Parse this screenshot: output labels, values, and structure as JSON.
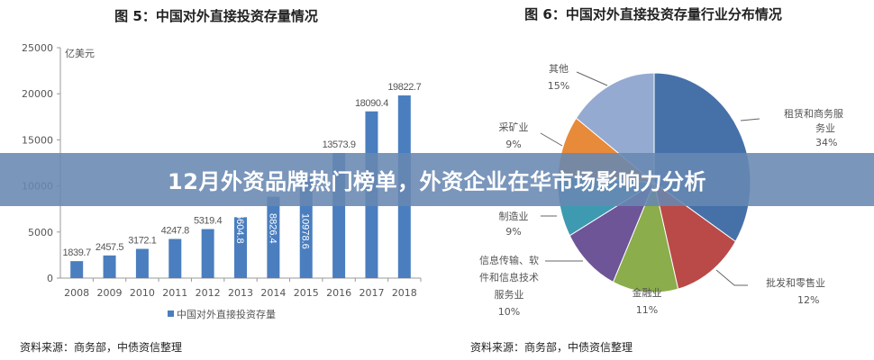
{
  "chart_data": [
    {
      "type": "bar",
      "title": "图 5：中国对外直接投资存量情况",
      "ylabel": "亿美元",
      "categories": [
        "2008",
        "2009",
        "2010",
        "2011",
        "2012",
        "2013",
        "2014",
        "2015",
        "2016",
        "2017",
        "2018"
      ],
      "series": [
        {
          "name": "中国对外直接投资存量",
          "values": [
            1839.7,
            2457.5,
            3172.1,
            4247.8,
            5319.4,
            6604.8,
            8826.4,
            10978.6,
            13573.9,
            18090.4,
            19822.7
          ]
        }
      ],
      "data_labels": [
        "1839.7",
        "2457.5",
        "3172.1",
        "4247.8",
        "5319.4",
        "6604.8",
        "8826.4",
        "10978.6",
        "13573.9",
        "18090.4",
        "19822.7"
      ],
      "yticks": [
        "0",
        "5000",
        "10000",
        "15000",
        "20000",
        "25000"
      ],
      "ylim": [
        0,
        25000
      ],
      "legend": "bottom",
      "color": "#4a7ebf",
      "source": "资料来源：商务部，中债资信整理"
    },
    {
      "type": "pie",
      "title": "图 6：中国对外直接投资存量行业分布情况",
      "slices": [
        {
          "label": "租赁和商务服务业",
          "lines": [
            "租赁和商务服",
            "务业"
          ],
          "value": 34,
          "pct": "34%",
          "color": "#4671a8"
        },
        {
          "label": "批发和零售业",
          "lines": [
            "批发和零售业"
          ],
          "value": 12,
          "pct": "12%",
          "color": "#b94a47"
        },
        {
          "label": "金融业",
          "lines": [
            "金融业"
          ],
          "value": 11,
          "pct": "11%",
          "color": "#8bad4b"
        },
        {
          "label": "信息传输、软件和信息技术服务业",
          "lines": [
            "信息传输、软",
            "件和信息技术",
            "服务业"
          ],
          "value": 10,
          "pct": "10%",
          "color": "#6d5597"
        },
        {
          "label": "制造业",
          "lines": [
            "制造业"
          ],
          "value": 9,
          "pct": "9%",
          "color": "#3e9ab1"
        },
        {
          "label": "采矿业",
          "lines": [
            "采矿业"
          ],
          "value": 9,
          "pct": "9%",
          "color": "#e78a3a"
        },
        {
          "label": "其他",
          "lines": [
            "其他"
          ],
          "value": 15,
          "pct": "15%",
          "color": "#94aad0"
        }
      ],
      "source": "资料来源：商务部，中债资信整理"
    }
  ],
  "banner": {
    "text": "12月外资品牌热门榜单，外资企业在华市场影响力分析"
  }
}
